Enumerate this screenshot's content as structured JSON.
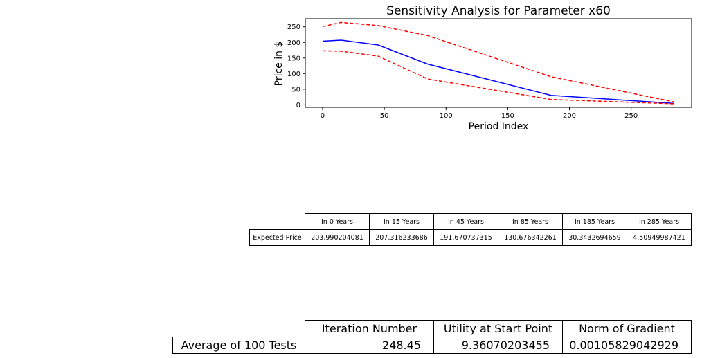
{
  "chart_data": {
    "type": "line",
    "title": "Sensitivity Analysis for Parameter x60",
    "xlabel": "Period Index",
    "ylabel": "Price in $",
    "xlim": [
      -14,
      299
    ],
    "ylim": [
      -8,
      276
    ],
    "xticks": [
      0,
      50,
      100,
      150,
      200,
      250
    ],
    "yticks": [
      0,
      50,
      100,
      150,
      200,
      250
    ],
    "grid": false,
    "series": [
      {
        "color": "#ff0000",
        "dash": true,
        "x": [
          0,
          15,
          45,
          85,
          185,
          285
        ],
        "y": [
          251,
          264,
          254,
          222,
          90,
          9
        ]
      },
      {
        "color": "#0000ff",
        "dash": false,
        "x": [
          0,
          15,
          45,
          85,
          185,
          285
        ],
        "y": [
          203.990204081,
          207.316233686,
          191.670737315,
          130.676342261,
          30.3432694659,
          4.50949987421
        ]
      },
      {
        "color": "#ff0000",
        "dash": true,
        "x": [
          0,
          15,
          45,
          85,
          185,
          285
        ],
        "y": [
          173,
          172,
          156,
          83,
          17,
          3
        ]
      }
    ]
  },
  "table1": {
    "headers": [
      "In 0 Years",
      "In 15 Years",
      "In 45 Years",
      "In 85 Years",
      "In 185 Years",
      "In 285 Years"
    ],
    "row_label": "Expected Price",
    "values": [
      "203.990204081",
      "207.316233686",
      "191.670737315",
      "130.676342261",
      "30.3432694659",
      "4.50949987421"
    ]
  },
  "table2": {
    "headers": [
      "Iteration Number",
      "Utility at Start Point",
      "Norm of Gradient"
    ],
    "row_label": "Average of 100 Tests",
    "values": [
      "248.45",
      "9.36070203455",
      "0.00105829042929"
    ]
  }
}
